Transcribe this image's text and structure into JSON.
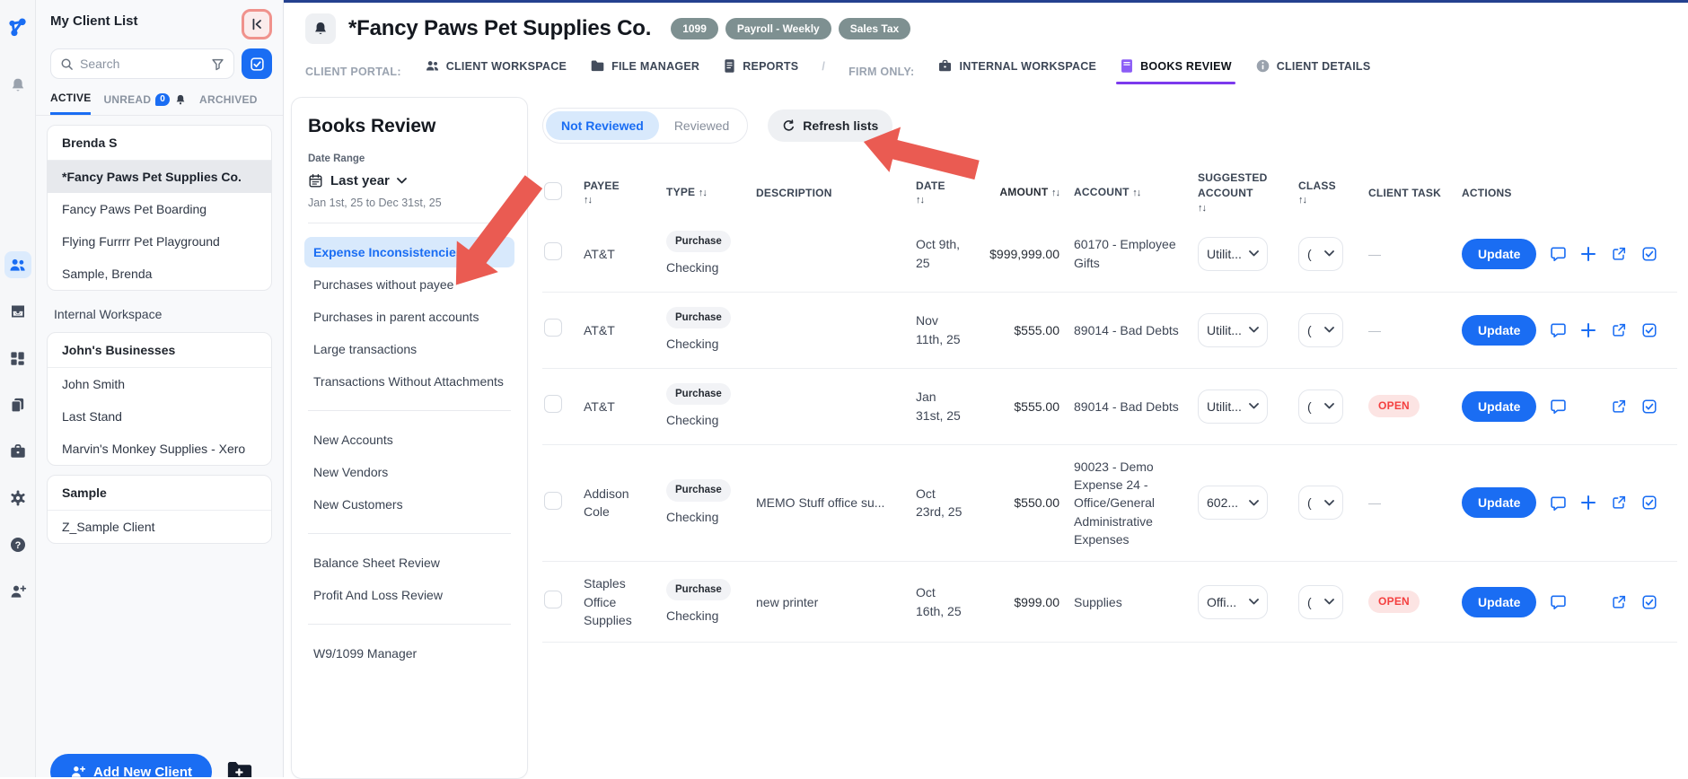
{
  "colors": {
    "accent_blue": "#1a6df3",
    "selected_blue_bg": "#d8e9fc",
    "badge_sage": "#7e9091",
    "open_red": "#f43f3f",
    "arrow_red": "#ea5b52",
    "books_purple": "#8b5cf6"
  },
  "rail": {
    "selected": "clients-people",
    "icons": [
      "app-logo",
      "notifications-bell",
      "clients-people",
      "inbox-tray",
      "dashboard-grid",
      "documents-pages",
      "firm-briefcase",
      "settings-gear",
      "help-question",
      "add-user"
    ]
  },
  "sidebar": {
    "title": "My Client List",
    "search": {
      "placeholder": "Search"
    },
    "tabs": {
      "active": "ACTIVE",
      "unread": "UNREAD",
      "unread_count": "0",
      "archived": "ARCHIVED"
    },
    "groups": [
      {
        "name": "Brenda S",
        "clients": [
          {
            "label": "*Fancy Paws Pet Supplies Co.",
            "selected": true
          },
          {
            "label": "Fancy Paws Pet Boarding"
          },
          {
            "label": "Flying Furrrr Pet Playground"
          },
          {
            "label": "Sample, Brenda"
          }
        ]
      },
      {
        "name": "John's Businesses",
        "clients": [
          {
            "label": "John Smith"
          },
          {
            "label": "Last Stand"
          },
          {
            "label": "Marvin's Monkey Supplies - Xero"
          }
        ]
      },
      {
        "name": "Sample",
        "clients": [
          {
            "label": "Z_Sample Client"
          }
        ]
      }
    ],
    "workspace_item": "Internal Workspace",
    "add_client_label": "Add New Client"
  },
  "header": {
    "title": "*Fancy Paws Pet Supplies Co.",
    "badges": [
      "1099",
      "Payroll - Weekly",
      "Sales Tax"
    ]
  },
  "nav": {
    "client_portal_label": "CLIENT PORTAL:",
    "client_workspace": "CLIENT WORKSPACE",
    "file_manager": "FILE MANAGER",
    "reports": "REPORTS",
    "separator": "/",
    "firm_only_label": "FIRM ONLY:",
    "internal_workspace": "INTERNAL WORKSPACE",
    "books_review": "BOOKS REVIEW",
    "client_details": "CLIENT DETAILS",
    "active_tab": "BOOKS REVIEW"
  },
  "books_review": {
    "title": "Books Review",
    "date_range_label": "Date Range",
    "date_preset": "Last year",
    "date_range": "Jan 1st, 25 to Dec 31st, 25",
    "selected_item": "Expense Inconsistencies",
    "sections": [
      [
        "Expense Inconsistencies",
        "Purchases without payee",
        "Purchases in parent accounts",
        "Large transactions",
        "Transactions Without Attachments"
      ],
      [
        "New Accounts",
        "New Vendors",
        "New Customers"
      ],
      [
        "Balance Sheet Review",
        "Profit And Loss Review"
      ],
      [
        "W9/1099 Manager"
      ]
    ]
  },
  "toolbar": {
    "not_reviewed": "Not Reviewed",
    "reviewed": "Reviewed",
    "refresh": "Refresh lists",
    "selected": "Not Reviewed"
  },
  "table": {
    "columns": [
      "PAYEE",
      "TYPE",
      "DESCRIPTION",
      "DATE",
      "AMOUNT",
      "ACCOUNT",
      "SUGGESTED ACCOUNT",
      "CLASS",
      "CLIENT TASK",
      "ACTIONS"
    ],
    "sort_glyph": "↑↓",
    "update_label": "Update",
    "open_badge": "OPEN",
    "empty_task": "—",
    "rows": [
      {
        "payee": "AT&T",
        "type": "Purchase",
        "source": "Checking",
        "description": "",
        "date": "Oct 9th, 25",
        "amount": "$999,999.00",
        "account": "60170 - Employee Gifts",
        "suggested": "Utilit...",
        "class": "(",
        "task": "none",
        "has_add": true
      },
      {
        "payee": "AT&T",
        "type": "Purchase",
        "source": "Checking",
        "description": "",
        "date": "Nov 11th, 25",
        "amount": "$555.00",
        "account": "89014 - Bad Debts",
        "suggested": "Utilit...",
        "class": "(",
        "task": "none",
        "has_add": true
      },
      {
        "payee": "AT&T",
        "type": "Purchase",
        "source": "Checking",
        "description": "",
        "date": "Jan 31st, 25",
        "amount": "$555.00",
        "account": "89014 - Bad Debts",
        "suggested": "Utilit...",
        "class": "(",
        "task": "open",
        "has_add": false
      },
      {
        "payee": "Addison Cole",
        "type": "Purchase",
        "source": "Checking",
        "description": "MEMO Stuff office su...",
        "date": "Oct 23rd, 25",
        "amount": "$550.00",
        "account": "90023 - Demo Expense 24 - Office/General Administrative Expenses",
        "suggested": "602...",
        "class": "(",
        "task": "none",
        "has_add": true
      },
      {
        "payee": "Staples Office Supplies",
        "type": "Purchase",
        "source": "Checking",
        "description": "new printer",
        "date": "Oct 16th, 25",
        "amount": "$999.00",
        "account": "Supplies",
        "suggested": "Offi...",
        "class": "(",
        "task": "open",
        "has_add": false
      }
    ]
  },
  "annotations": {
    "arrow_1_points_at": "Expense Inconsistencies",
    "arrow_2_points_at": "Refresh lists",
    "highlight_ring_on": "collapse sidebar button"
  }
}
